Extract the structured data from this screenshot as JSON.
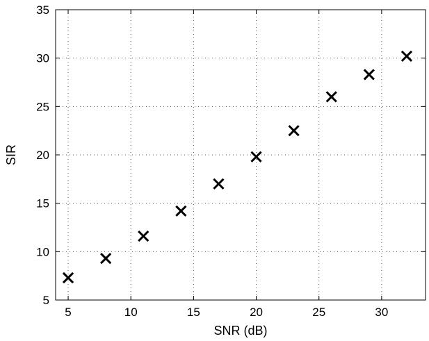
{
  "chart_data": {
    "type": "scatter",
    "title": "",
    "xlabel": "SNR (dB)",
    "ylabel": "SIR",
    "xlim": [
      4,
      33.5
    ],
    "ylim": [
      5,
      35
    ],
    "xticks": [
      5,
      10,
      15,
      20,
      25,
      30
    ],
    "yticks": [
      5,
      10,
      15,
      20,
      25,
      30,
      35
    ],
    "grid": true,
    "marker": "x",
    "series": [
      {
        "x": [
          5,
          8,
          11,
          14,
          17,
          20,
          23,
          26,
          29,
          32
        ],
        "y": [
          7.3,
          9.3,
          11.6,
          14.2,
          17.0,
          19.8,
          22.5,
          26.0,
          28.3,
          30.2
        ]
      }
    ],
    "colors": {
      "marker": "#000000",
      "axis": "#000000",
      "grid": "#555555"
    }
  }
}
